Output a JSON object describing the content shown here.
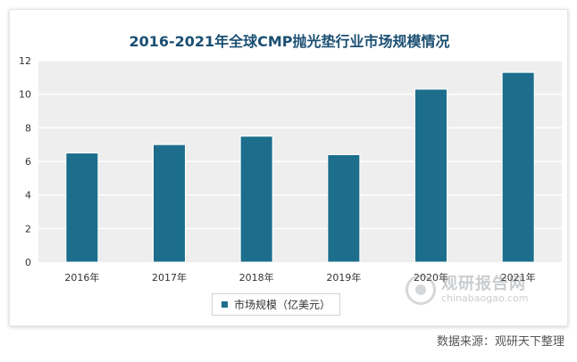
{
  "chart_data": {
    "type": "bar",
    "title": "2016-2021年全球CMP抛光垫行业市场规模情况",
    "categories": [
      "2016年",
      "2017年",
      "2018年",
      "2019年",
      "2020年",
      "2021年"
    ],
    "series": [
      {
        "name": "市场规模（亿美元）",
        "values": [
          6.5,
          7.0,
          7.5,
          6.4,
          10.3,
          11.3
        ]
      }
    ],
    "ylim": [
      0,
      12
    ],
    "yticks": [
      0,
      2,
      4,
      6,
      8,
      10,
      12
    ],
    "xlabel": "",
    "ylabel": "",
    "grid": "horizontal",
    "legend": "bottom-center"
  },
  "colors": {
    "title": "#1b4f72",
    "bar": "#1c6e8c",
    "plot_bg": "#eeeeee",
    "grid": "#ffffff"
  },
  "watermark": {
    "cn": "观研报告网",
    "en": "chinabaogao.com"
  },
  "source": "数据来源：观研天下整理"
}
